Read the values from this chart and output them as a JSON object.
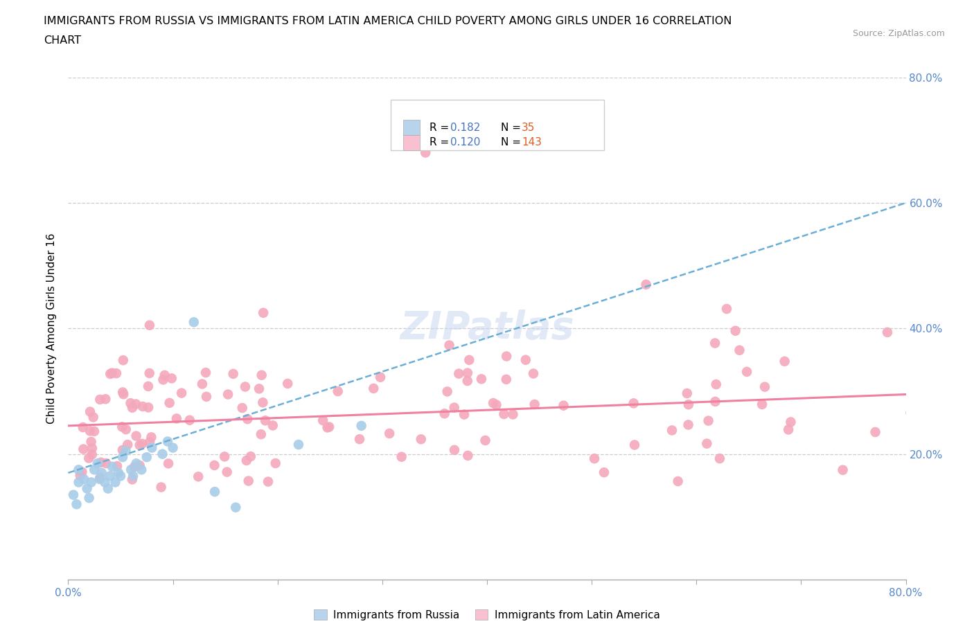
{
  "title_line1": "IMMIGRANTS FROM RUSSIA VS IMMIGRANTS FROM LATIN AMERICA CHILD POVERTY AMONG GIRLS UNDER 16 CORRELATION",
  "title_line2": "CHART",
  "source": "Source: ZipAtlas.com",
  "ylabel": "Child Poverty Among Girls Under 16",
  "xlim": [
    0.0,
    0.8
  ],
  "ylim": [
    0.0,
    0.8
  ],
  "russia_R": 0.182,
  "russia_N": 35,
  "latin_R": 0.12,
  "latin_N": 143,
  "russia_scatter_color": "#a8cce8",
  "latin_scatter_color": "#f4a8bc",
  "trendline_russia_color": "#6baed6",
  "trendline_latin_color": "#f080a0",
  "watermark_color": "#d0dff0",
  "legend_color": "#4472c4",
  "legend_N_color": "#e05c20",
  "grid_color": "#cccccc",
  "russia_patch_color": "#b8d4ec",
  "latin_patch_color": "#f8c0d0",
  "tick_color": "#5588cc",
  "bottom_legend_russia": "Immigrants from Russia",
  "bottom_legend_latin": "Immigrants from Latin America"
}
